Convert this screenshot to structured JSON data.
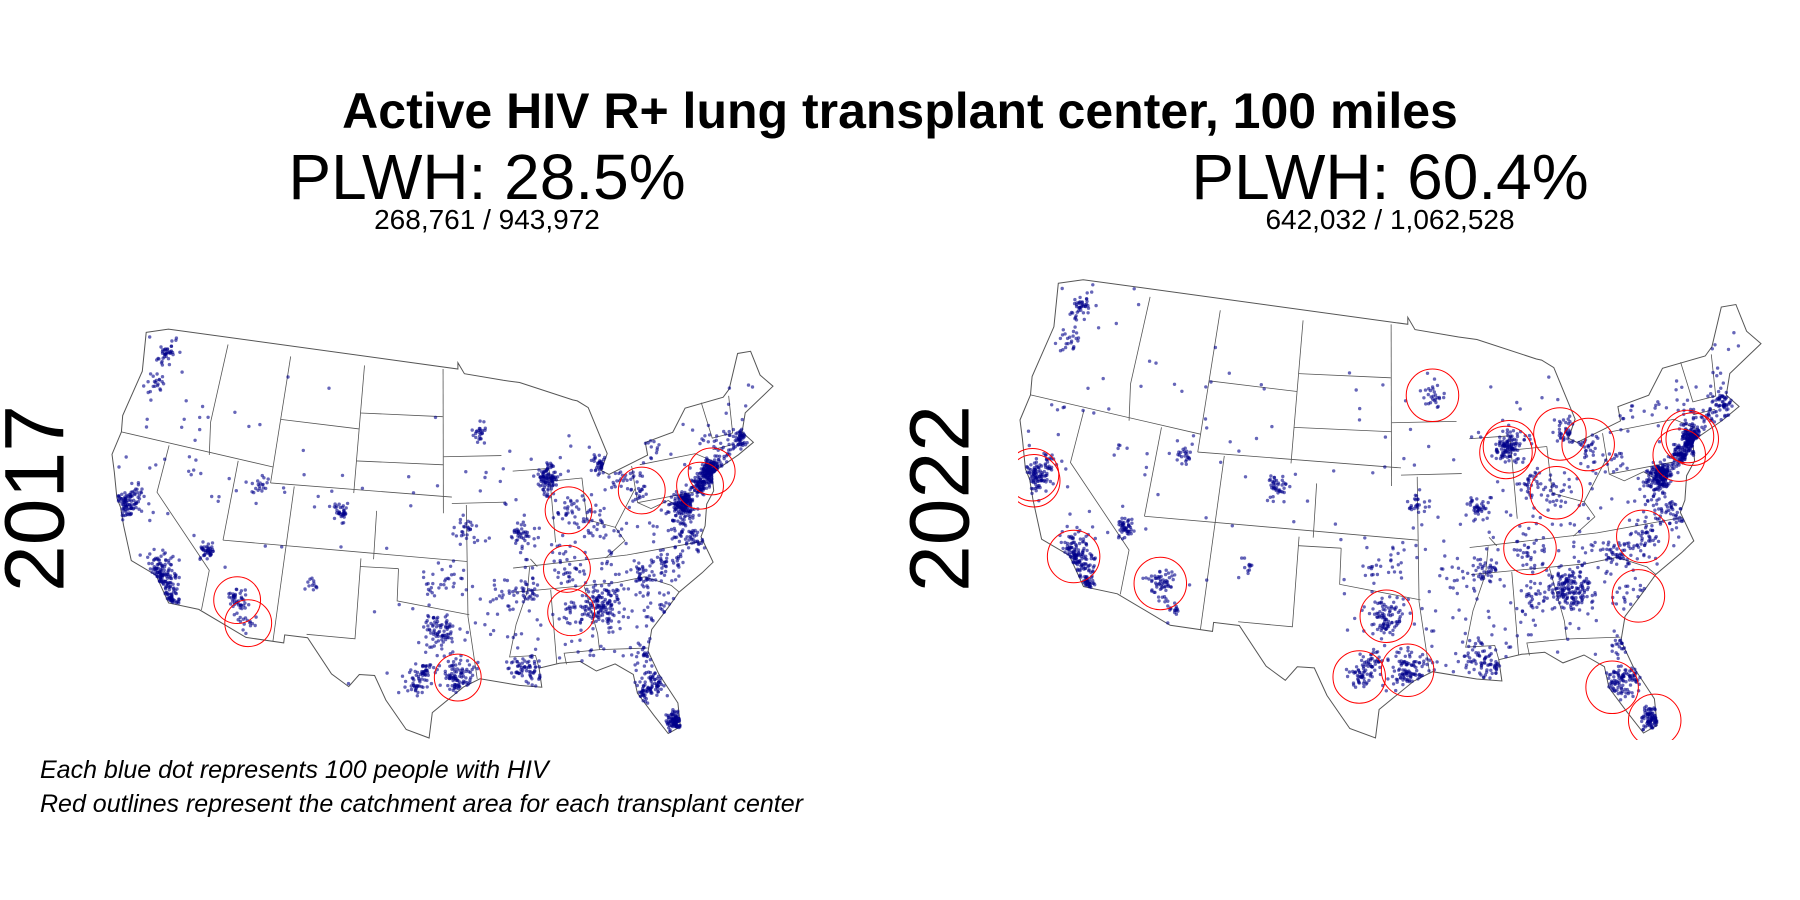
{
  "chart_data": {
    "type": "scatter",
    "title": "Active HIV R+ lung transplant center, 100 miles",
    "notes": [
      "Each blue dot represents 100 people with HIV",
      "Red outlines represent the catchment area for each transplant center"
    ],
    "colors": {
      "dots": "#00008B",
      "circles": "#FF0000",
      "borders": "#555555"
    },
    "panels": [
      {
        "year": "2017",
        "plwh_label": "PLWH: 28.5%",
        "plwh_pct": 28.5,
        "fraction_label": "268,761 / 943,972",
        "covered": 268761,
        "total": 943972,
        "centers_lonlat": [
          [
            -112.1,
            33.5
          ],
          [
            -111.0,
            32.2
          ],
          [
            -95.4,
            29.8
          ],
          [
            -86.2,
            39.8
          ],
          [
            -86.8,
            36.2
          ],
          [
            -86.8,
            33.5
          ],
          [
            -80.0,
            40.4
          ],
          [
            -75.2,
            40.0
          ],
          [
            -74.0,
            40.7
          ]
        ]
      },
      {
        "year": "2022",
        "plwh_label": "PLWH: 60.4%",
        "plwh_pct": 60.4,
        "fraction_label": "642,032 / 1,062,528",
        "covered": 642032,
        "total": 1062528,
        "centers_lonlat": [
          [
            -122.4,
            37.8
          ],
          [
            -122.2,
            37.5
          ],
          [
            -118.2,
            34.0
          ],
          [
            -112.1,
            33.5
          ],
          [
            -93.3,
            45.0
          ],
          [
            -87.6,
            41.9
          ],
          [
            -87.9,
            41.6
          ],
          [
            -83.7,
            42.3
          ],
          [
            -84.5,
            39.1
          ],
          [
            -81.7,
            41.5
          ],
          [
            -74.0,
            40.7
          ],
          [
            -74.3,
            40.9
          ],
          [
            -75.2,
            40.0
          ],
          [
            -78.9,
            36.0
          ],
          [
            -79.9,
            32.8
          ],
          [
            -86.8,
            36.2
          ],
          [
            -96.8,
            32.8
          ],
          [
            -98.5,
            29.4
          ],
          [
            -95.4,
            29.8
          ],
          [
            -82.5,
            28.0
          ],
          [
            -80.2,
            25.8
          ]
        ]
      }
    ]
  }
}
